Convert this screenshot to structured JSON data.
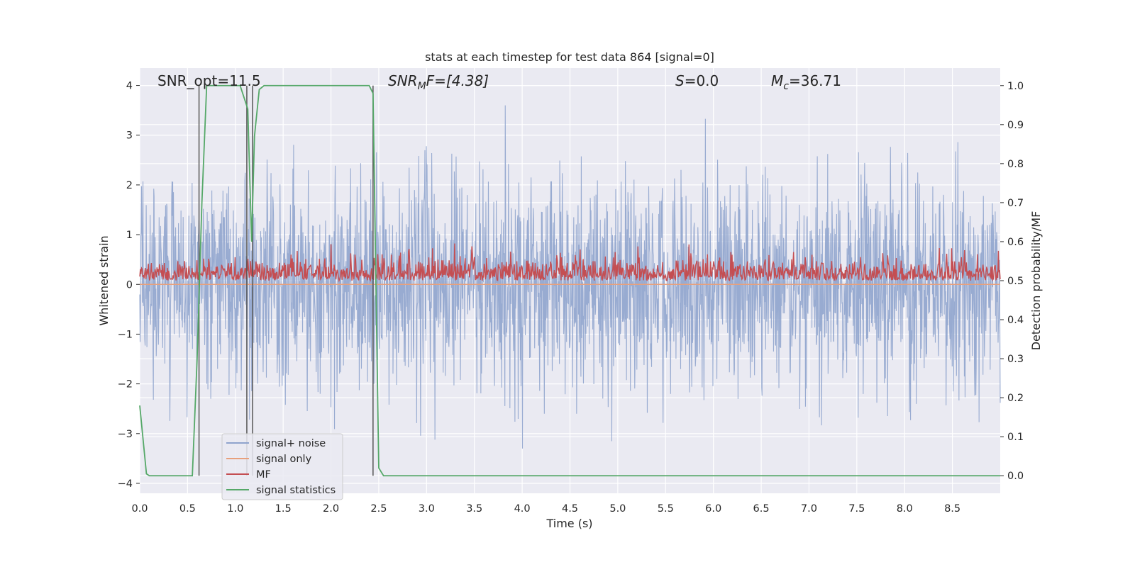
{
  "chart_data": {
    "type": "line",
    "title": "stats at each timestep for test data 864 [signal=0]",
    "xlabel": "Time (s)",
    "ylabel": "Whitened strain",
    "y2label": "Detection probability/MF",
    "xlim": [
      0,
      9.0
    ],
    "ylim": [
      -4.2,
      4.35
    ],
    "y2lim": [
      -0.045,
      1.045
    ],
    "x_ticks": [
      "0.0",
      "0.5",
      "1.0",
      "1.5",
      "2.0",
      "2.5",
      "3.0",
      "3.5",
      "4.0",
      "4.5",
      "5.0",
      "5.5",
      "6.0",
      "6.5",
      "7.0",
      "7.5",
      "8.0",
      "8.5"
    ],
    "y_ticks": [
      "4",
      "3",
      "2",
      "1",
      "0",
      "−1",
      "−2",
      "−3",
      "−4"
    ],
    "y2_ticks": [
      "1.0",
      "0.9",
      "0.8",
      "0.7",
      "0.6",
      "0.5",
      "0.4",
      "0.3",
      "0.2",
      "0.1",
      "0.0"
    ],
    "grid": true,
    "legend_position": "lower-left",
    "annotations": {
      "snr_opt": "SNR_opt=11.5",
      "snr_mf_main": "SNR",
      "snr_mf_sub": "M",
      "snr_mf_rest": "F=[4.38]",
      "s_main": "S",
      "s_rest": "=0.0",
      "mc_main": "M",
      "mc_sub": "c",
      "mc_rest": "=36.71"
    },
    "series": [
      {
        "name": "signal+ noise",
        "color": "#8fa4cd",
        "axis": "left",
        "description": "whitened noise, std ~1, peaks ~±3.5",
        "amplitude_range": [
          -3.3,
          3.6
        ]
      },
      {
        "name": "signal only",
        "color": "#e8a07c",
        "axis": "left",
        "values_constant": 0
      },
      {
        "name": "MF",
        "color": "#c44e52",
        "axis": "right",
        "value_range": [
          0.5,
          0.6
        ]
      },
      {
        "name": "signal statistics",
        "color": "#55a868",
        "axis": "right",
        "x": [
          0.0,
          0.07,
          0.1,
          0.15,
          0.55,
          0.6,
          0.65,
          0.7,
          0.8,
          1.05,
          1.13,
          1.17,
          1.2,
          1.25,
          1.3,
          2.4,
          2.44,
          2.47,
          2.5,
          2.55,
          9.0
        ],
        "y": [
          0.18,
          0.005,
          0.0,
          0.0,
          0.0,
          0.3,
          0.7,
          1.0,
          1.0,
          1.0,
          0.94,
          0.6,
          0.87,
          0.99,
          1.0,
          1.0,
          0.98,
          0.5,
          0.02,
          0.0,
          0.0
        ]
      }
    ],
    "vertical_markers_x": [
      0.62,
      1.12,
      1.18,
      2.44
    ]
  },
  "colors": {
    "plot_bg": "#eaeaf2",
    "grid": "#ffffff",
    "marker": "#555555"
  }
}
